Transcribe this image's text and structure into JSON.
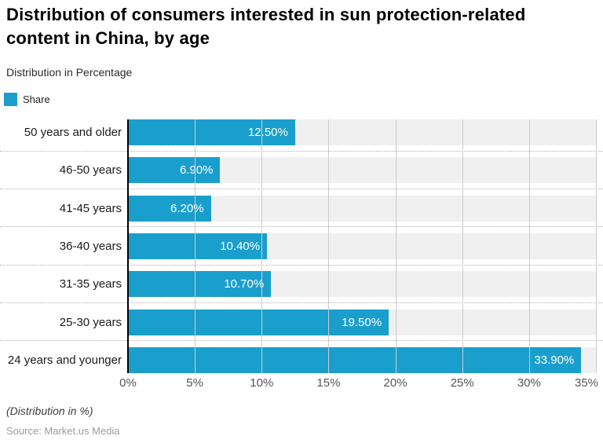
{
  "header": {
    "title": "Distribution of consumers interested in sun protection-related content in China, by age",
    "subtitle": "Distribution in Percentage"
  },
  "legend": {
    "label": "Share",
    "color": "#1a9fcd"
  },
  "chart_data": {
    "type": "bar",
    "orientation": "horizontal",
    "title": "Distribution of consumers interested in sun protection-related content in China, by age",
    "ylabel": "",
    "xlabel": "",
    "series_name": "Share",
    "categories": [
      "50 years and older",
      "46-50 years",
      "41-45 years",
      "36-40 years",
      "31-35 years",
      "25-30 years",
      "24 years and younger"
    ],
    "values": [
      12.5,
      6.9,
      6.2,
      10.4,
      10.7,
      19.5,
      33.9
    ],
    "value_labels": [
      "12.50%",
      "6.90%",
      "6.20%",
      "10.40%",
      "10.70%",
      "19.50%",
      "33.90%"
    ],
    "xlim": [
      0,
      35
    ],
    "x_tick_values": [
      0,
      5,
      10,
      15,
      20,
      25,
      30,
      35
    ],
    "x_tick_labels": [
      "0%",
      "5%",
      "10%",
      "15%",
      "20%",
      "25%",
      "30%",
      "35%"
    ],
    "grid": true,
    "legend_position": "top-left",
    "colors": {
      "bar": "#1a9fcd",
      "row_band": "#f0f0f0",
      "gridline": "#cccccc",
      "separator": "#b3b3b3",
      "axis": "#000000"
    }
  },
  "footer": {
    "note": "(Distribution in %)",
    "source": "Source: Market.us Media"
  }
}
